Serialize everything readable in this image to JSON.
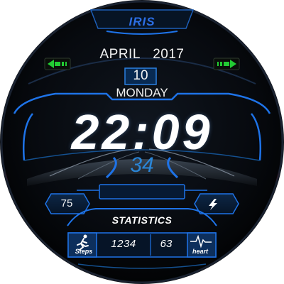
{
  "brand": "IRIS",
  "date": {
    "month": "APRIL",
    "year": "2017",
    "day": "10",
    "weekday": "MONDAY"
  },
  "time": "22:09",
  "secondary_value": "34",
  "left_complication": "75",
  "statistics": {
    "title": "STATISTICS",
    "steps_value": "1234",
    "heart_value": "63",
    "steps_label": "Steps",
    "heart_label": "heart"
  },
  "icons": {
    "left_arrow": "green-left-arrow-icon",
    "right_arrow": "green-right-arrow-icon",
    "lightning": "lightning-icon",
    "runner": "runner-icon",
    "heartbeat": "heartbeat-icon"
  },
  "colors": {
    "background": "#000000",
    "accent_blue": "#1e73e8",
    "secondary_blue": "#2a86d8",
    "arrow_green": "#22cc33",
    "red_glow": "#c8141a",
    "text": "#ffffff"
  }
}
